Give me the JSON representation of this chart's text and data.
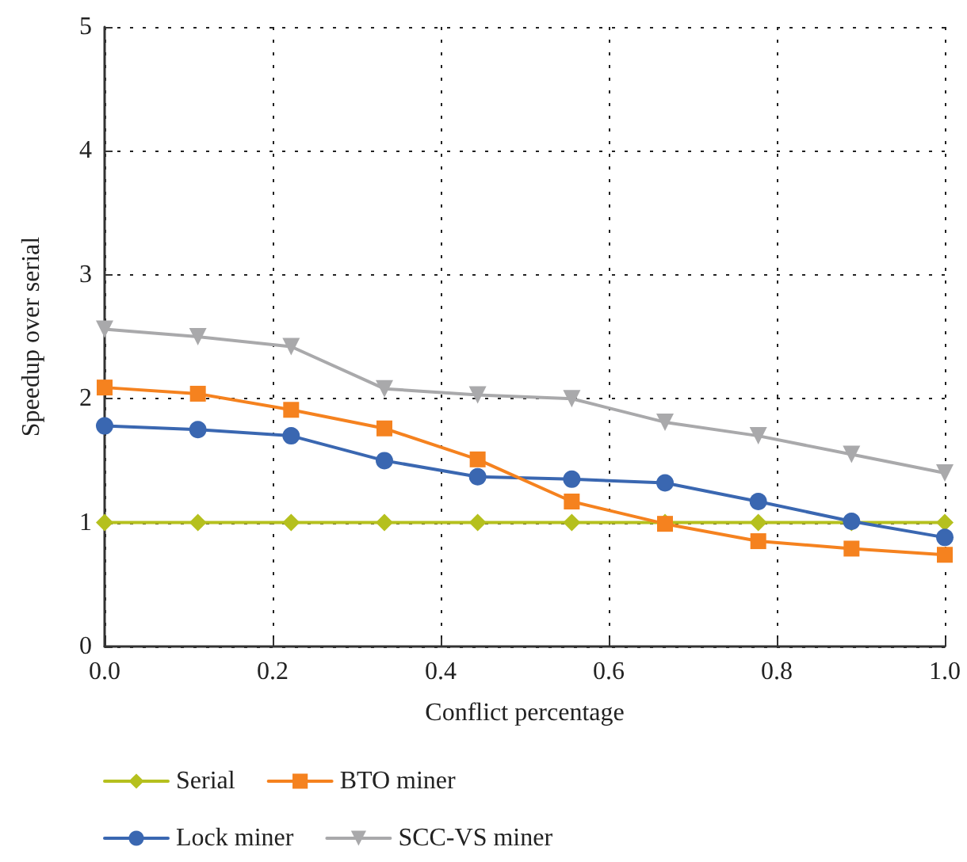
{
  "chart_data": {
    "type": "line",
    "xlabel": "Conflict percentage",
    "ylabel": "Speedup over serial",
    "x": [
      0,
      0.111,
      0.222,
      0.333,
      0.444,
      0.556,
      0.667,
      0.778,
      0.889,
      1.0
    ],
    "series": [
      {
        "name": "Serial",
        "color": "#b5c01e",
        "marker": "diamond",
        "values": [
          1,
          1,
          1,
          1,
          1,
          1,
          1,
          1,
          1,
          1
        ]
      },
      {
        "name": "Lock miner",
        "color": "#3a67b1",
        "marker": "circle",
        "values": [
          1.78,
          1.75,
          1.7,
          1.5,
          1.37,
          1.35,
          1.32,
          1.17,
          1.01,
          0.88
        ]
      },
      {
        "name": "BTO miner",
        "color": "#f5821f",
        "marker": "square",
        "values": [
          2.09,
          2.04,
          1.91,
          1.76,
          1.51,
          1.17,
          0.99,
          0.85,
          0.79,
          0.74
        ]
      },
      {
        "name": "SCC-VS miner",
        "color": "#a9a9ab",
        "marker": "triangle",
        "values": [
          2.56,
          2.5,
          2.42,
          2.08,
          2.03,
          2.0,
          1.81,
          1.7,
          1.55,
          1.4
        ]
      }
    ],
    "xlim": [
      0,
      1
    ],
    "xticks": [
      {
        "value": 0,
        "label": "0.0"
      },
      0.2,
      0.4,
      0.6,
      0.8,
      {
        "value": 1,
        "label": "1.0"
      }
    ],
    "ylim": [
      0,
      5
    ],
    "yticks": [
      0,
      1,
      2,
      3,
      4,
      5
    ],
    "grid": true,
    "legend": "bottom"
  }
}
